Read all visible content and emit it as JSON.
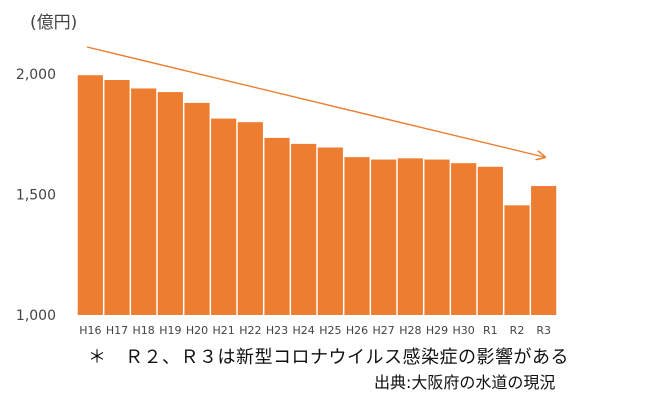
{
  "chart_data": {
    "type": "bar",
    "y_unit_label": "(億円)",
    "categories": [
      "H16",
      "H17",
      "H18",
      "H19",
      "H20",
      "H21",
      "H22",
      "H23",
      "H24",
      "H25",
      "H26",
      "H27",
      "H28",
      "H29",
      "H30",
      "R1",
      "R2",
      "R3"
    ],
    "values": [
      1995,
      1975,
      1940,
      1925,
      1880,
      1815,
      1800,
      1735,
      1710,
      1695,
      1655,
      1645,
      1650,
      1645,
      1630,
      1615,
      1455,
      1535
    ],
    "ylim": [
      1000,
      2000
    ],
    "y_ticks": [
      "2,000",
      "1,500",
      "1,000"
    ],
    "y_tick_values": [
      2000,
      1500,
      1000
    ],
    "bar_color": "#ED7D31",
    "trend_arrow": true,
    "trend_color": "#ED7D31",
    "gridlines": false
  },
  "note": "＊　Ｒ２、Ｒ３は新型コロナウイルス感染症の影響がある",
  "source": "出典:大阪府の水道の現況"
}
